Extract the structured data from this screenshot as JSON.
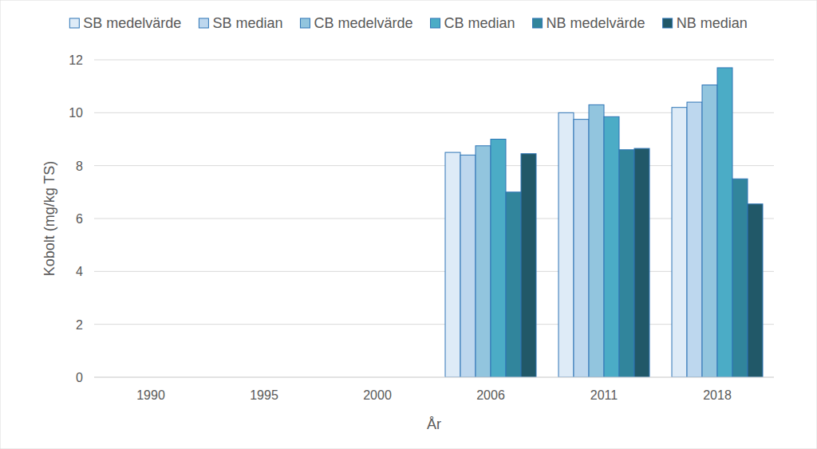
{
  "chart_data": {
    "type": "bar",
    "x_label": "År",
    "y_label": "Kobolt (mg/kg TS)",
    "categories": [
      "1990",
      "1995",
      "2000",
      "2006",
      "2011",
      "2018"
    ],
    "series": [
      {
        "name": "SB medelvärde",
        "color": "#deebf7",
        "values": [
          null,
          null,
          null,
          8.5,
          10.0,
          10.2
        ]
      },
      {
        "name": "SB median",
        "color": "#bdd7ee",
        "values": [
          null,
          null,
          null,
          8.4,
          9.75,
          10.4
        ]
      },
      {
        "name": "CB medelvärde",
        "color": "#92c5de",
        "values": [
          null,
          null,
          null,
          8.75,
          10.3,
          11.05
        ]
      },
      {
        "name": "CB median",
        "color": "#4bacc6",
        "values": [
          null,
          null,
          null,
          9.0,
          9.85,
          11.7
        ]
      },
      {
        "name": "NB medelvärde",
        "color": "#31859c",
        "values": [
          null,
          null,
          null,
          7.0,
          8.6,
          7.5
        ]
      },
      {
        "name": "NB median",
        "color": "#215868",
        "values": [
          null,
          null,
          null,
          8.45,
          8.65,
          6.55
        ]
      }
    ],
    "ylim": [
      0,
      12
    ],
    "yticks": [
      0,
      2,
      4,
      6,
      8,
      10,
      12
    ],
    "grid": true,
    "legend": "top"
  }
}
